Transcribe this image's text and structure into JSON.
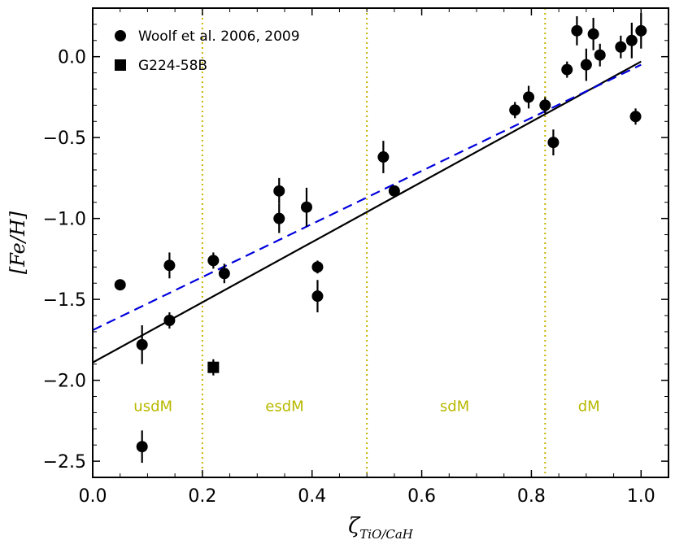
{
  "chart_data": {
    "type": "scatter",
    "xlabel_main": "ζ",
    "xlabel_sub": "TiO/CaH",
    "ylabel": "[Fe/H]",
    "xlim": [
      0.0,
      1.05
    ],
    "ylim": [
      -2.6,
      0.3
    ],
    "x_ticks": [
      0.0,
      0.2,
      0.4,
      0.6,
      0.8,
      1.0
    ],
    "x_tick_labels": [
      "0.0",
      "0.2",
      "0.4",
      "0.6",
      "0.8",
      "1.0"
    ],
    "y_ticks": [
      0.0,
      -0.5,
      -1.0,
      -1.5,
      -2.0,
      -2.5
    ],
    "y_tick_labels": [
      "0.0",
      "−0.5",
      "−1.0",
      "−1.5",
      "−2.0",
      "−2.5"
    ],
    "legend": [
      {
        "name": "Woolf et al. 2006, 2009",
        "marker": "circle"
      },
      {
        "name": "G224-58B",
        "marker": "square"
      }
    ],
    "series": [
      {
        "name": "Woolf et al. 2006, 2009",
        "marker": "circle",
        "points": [
          {
            "x": 0.05,
            "y": -1.41,
            "err": 0.0
          },
          {
            "x": 0.09,
            "y": -1.78,
            "err": 0.12
          },
          {
            "x": 0.09,
            "y": -2.41,
            "err": 0.1
          },
          {
            "x": 0.14,
            "y": -1.29,
            "err": 0.08
          },
          {
            "x": 0.14,
            "y": -1.63,
            "err": 0.05
          },
          {
            "x": 0.22,
            "y": -1.26,
            "err": 0.05
          },
          {
            "x": 0.24,
            "y": -1.34,
            "err": 0.06
          },
          {
            "x": 0.34,
            "y": -0.83,
            "err": 0.08
          },
          {
            "x": 0.34,
            "y": -1.0,
            "err": 0.09
          },
          {
            "x": 0.39,
            "y": -0.93,
            "err": 0.12
          },
          {
            "x": 0.41,
            "y": -1.3,
            "err": 0.04
          },
          {
            "x": 0.41,
            "y": -1.48,
            "err": 0.1
          },
          {
            "x": 0.53,
            "y": -0.62,
            "err": 0.1
          },
          {
            "x": 0.55,
            "y": -0.83,
            "err": 0.03
          },
          {
            "x": 0.77,
            "y": -0.33,
            "err": 0.05
          },
          {
            "x": 0.795,
            "y": -0.25,
            "err": 0.07
          },
          {
            "x": 0.825,
            "y": -0.3,
            "err": 0.05
          },
          {
            "x": 0.84,
            "y": -0.53,
            "err": 0.08
          },
          {
            "x": 0.865,
            "y": -0.08,
            "err": 0.05
          },
          {
            "x": 0.883,
            "y": 0.16,
            "err": 0.09
          },
          {
            "x": 0.9,
            "y": -0.05,
            "err": 0.1
          },
          {
            "x": 0.913,
            "y": 0.14,
            "err": 0.1
          },
          {
            "x": 0.925,
            "y": 0.01,
            "err": 0.07
          },
          {
            "x": 0.963,
            "y": 0.06,
            "err": 0.07
          },
          {
            "x": 0.983,
            "y": 0.1,
            "err": 0.11
          },
          {
            "x": 0.99,
            "y": -0.37,
            "err": 0.05
          },
          {
            "x": 1.0,
            "y": 0.16,
            "err": 0.11
          }
        ]
      },
      {
        "name": "G224-58B",
        "marker": "square",
        "points": [
          {
            "x": 0.22,
            "y": -1.92,
            "err": 0.05
          }
        ]
      }
    ],
    "fit_lines": [
      {
        "name": "solid fit",
        "style": "solid",
        "color": "#000000",
        "x": [
          0.0,
          1.0
        ],
        "y": [
          -1.89,
          -0.03
        ]
      },
      {
        "name": "dashed fit",
        "style": "dashed",
        "color": "#0000dd",
        "x": [
          0.0,
          1.0
        ],
        "y": [
          -1.69,
          -0.05
        ]
      }
    ],
    "region_boundaries": [
      0.2,
      0.5,
      0.825
    ],
    "boundary_color": "#c8b400",
    "regions": [
      {
        "label": "usdM",
        "x": 0.11
      },
      {
        "label": "esdM",
        "x": 0.35
      },
      {
        "label": "sdM",
        "x": 0.66
      },
      {
        "label": "dM",
        "x": 0.905
      }
    ],
    "region_label_y": -2.16,
    "grid": false
  }
}
